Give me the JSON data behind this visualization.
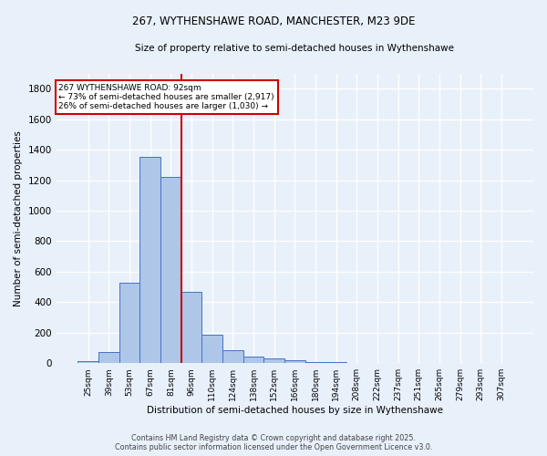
{
  "title1": "267, WYTHENSHAWE ROAD, MANCHESTER, M23 9DE",
  "title2": "Size of property relative to semi-detached houses in Wythenshawe",
  "xlabel": "Distribution of semi-detached houses by size in Wythenshawe",
  "ylabel": "Number of semi-detached properties",
  "bin_labels": [
    "25sqm",
    "39sqm",
    "53sqm",
    "67sqm",
    "81sqm",
    "96sqm",
    "110sqm",
    "124sqm",
    "138sqm",
    "152sqm",
    "166sqm",
    "180sqm",
    "194sqm",
    "208sqm",
    "222sqm",
    "237sqm",
    "251sqm",
    "265sqm",
    "279sqm",
    "293sqm",
    "307sqm"
  ],
  "bar_heights": [
    15,
    75,
    530,
    1350,
    1220,
    470,
    185,
    85,
    45,
    32,
    22,
    10,
    5,
    2,
    0,
    0,
    0,
    0,
    0,
    0,
    0
  ],
  "bar_color": "#aec6e8",
  "bar_edge_color": "#4472c4",
  "vline_color": "#cc0000",
  "ylim": [
    0,
    1900
  ],
  "yticks": [
    0,
    200,
    400,
    600,
    800,
    1000,
    1200,
    1400,
    1600,
    1800
  ],
  "annotation_title": "267 WYTHENSHAWE ROAD: 92sqm",
  "annotation_line1": "← 73% of semi-detached houses are smaller (2,917)",
  "annotation_line2": "26% of semi-detached houses are larger (1,030) →",
  "annotation_box_color": "#ffffff",
  "annotation_box_edge": "#cc0000",
  "footer1": "Contains HM Land Registry data © Crown copyright and database right 2025.",
  "footer2": "Contains public sector information licensed under the Open Government Licence v3.0.",
  "bg_color": "#e8f0fa",
  "grid_color": "#ffffff"
}
